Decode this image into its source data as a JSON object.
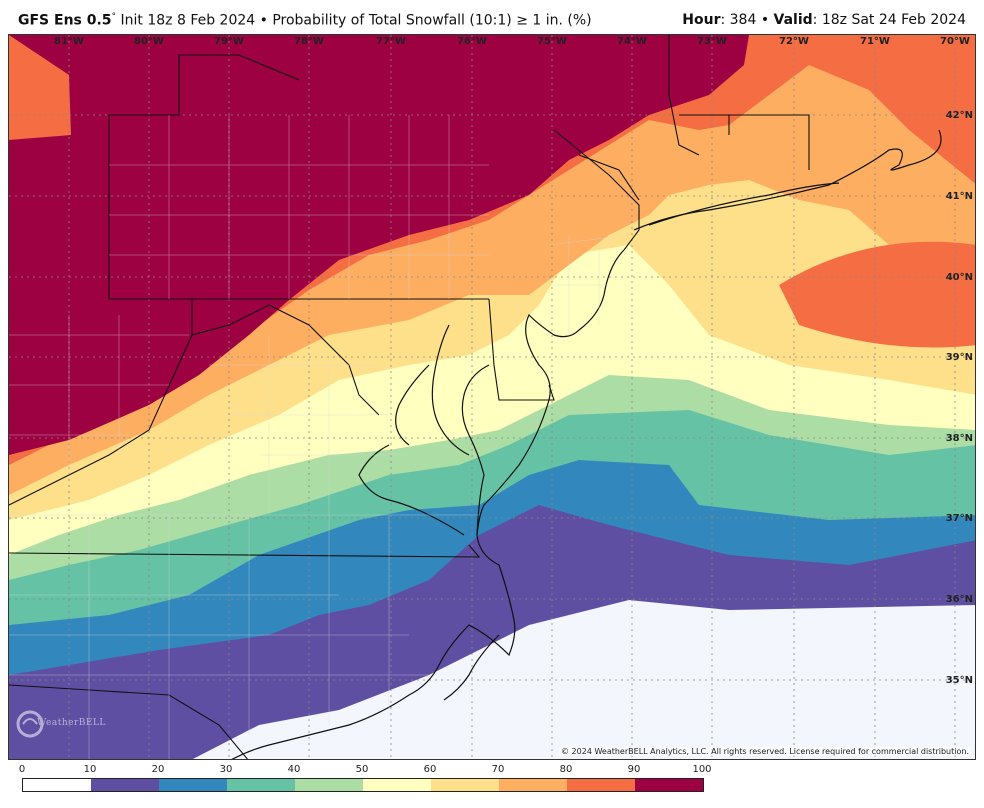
{
  "header": {
    "model": "GFS Ens 0.5",
    "degree_symbol": "°",
    "init_text": " Init 18z 8 Feb 2024 • Probability of Total Snowfall (10:1) ≥ 1 in. (%)",
    "hour_label": "Hour",
    "hour_value": ": 384 • ",
    "valid_label": "Valid",
    "valid_value": ": 18z Sat 24 Feb 2024"
  },
  "map": {
    "longitude_labels": [
      "81°W",
      "80°W",
      "79°W",
      "78°W",
      "77°W",
      "76°W",
      "75°W",
      "74°W",
      "73°W",
      "72°W",
      "71°W",
      "70°W"
    ],
    "latitude_labels": [
      "42°N",
      "41°N",
      "40°N",
      "39°N",
      "38°N",
      "37°N",
      "36°N",
      "35°N"
    ],
    "copyright": "© 2024 WeatherBELL Analytics, LLC. All rights reserved. License required for commercial distribution.",
    "logo_text": "WeatherBELL",
    "colors": {
      "band_0_10": "#f3f6fc",
      "band_10_20": "#5e4fa2",
      "band_20_30": "#3288bd",
      "band_30_40": "#66c2a5",
      "band_40_50": "#abdda4",
      "band_50_60": "#ffffbf",
      "band_60_70": "#fee08b",
      "band_70_80": "#fdae61",
      "band_80_90": "#f46d43",
      "band_90_100": "#9e0142"
    }
  },
  "colorbar": {
    "ticks": [
      "0",
      "10",
      "20",
      "30",
      "40",
      "50",
      "60",
      "70",
      "80",
      "90",
      "100"
    ],
    "colors": [
      "#ffffff",
      "#5e4fa2",
      "#3288bd",
      "#66c2a5",
      "#abdda4",
      "#ffffbf",
      "#fee08b",
      "#fdae61",
      "#f46d43",
      "#9e0142"
    ]
  }
}
